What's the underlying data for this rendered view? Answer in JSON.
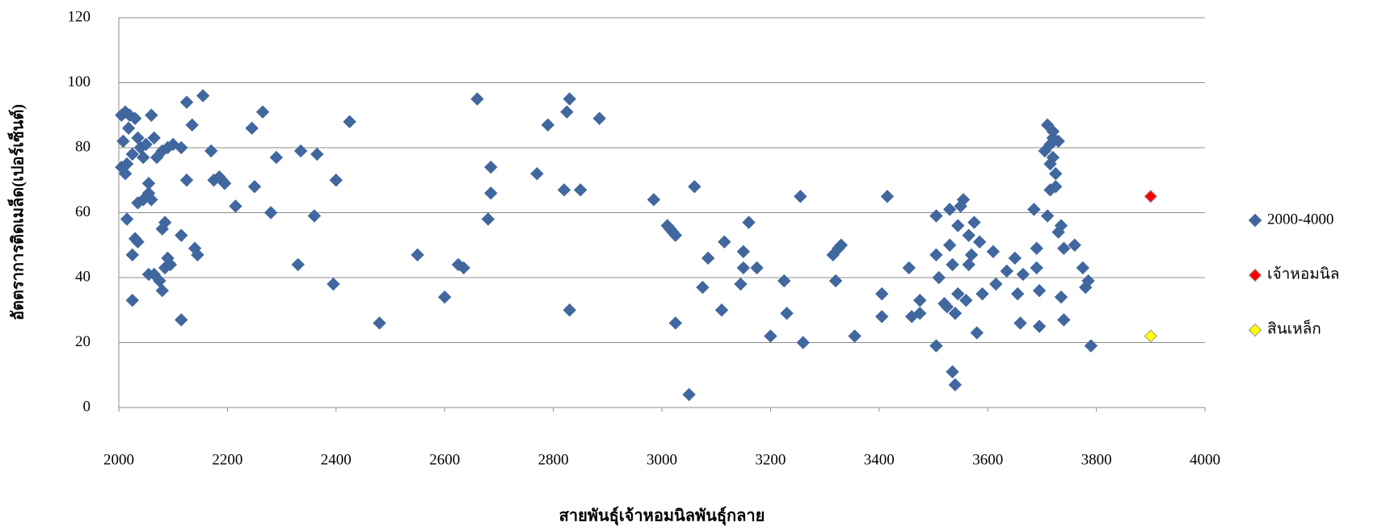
{
  "chart_data": {
    "type": "scatter",
    "x_label": "สายพันธุ์เจ้าหอมนิลพันธุ์กลาย",
    "y_label": "อัตตราการติดเมล็ด(เปอร์เซ็นต์)",
    "xlim": [
      2000,
      4000
    ],
    "xticks": [
      2000,
      2200,
      2400,
      2600,
      2800,
      3000,
      3200,
      3400,
      3600,
      3800,
      4000
    ],
    "ylim": [
      0,
      120
    ],
    "yticks": [
      0,
      20,
      40,
      60,
      80,
      100,
      120
    ],
    "grid": true,
    "legend": "right",
    "series": [
      {
        "name": "2000-4000",
        "color": "#41679f",
        "x": [
          2005,
          2012,
          2020,
          2030,
          2018,
          2008,
          2015,
          2005,
          2012,
          2025,
          2035,
          2040,
          2045,
          2050,
          2060,
          2065,
          2070,
          2080,
          2090,
          2100,
          2115,
          2015,
          2025,
          2030,
          2035,
          2035,
          2045,
          2055,
          2055,
          2060,
          2055,
          2065,
          2025,
          2080,
          2075,
          2085,
          2090,
          2095,
          2080,
          2085,
          2115,
          2115,
          2125,
          2125,
          2135,
          2140,
          2145,
          2155,
          2170,
          2175,
          2185,
          2190,
          2195,
          2215,
          2245,
          2250,
          2265,
          2280,
          2290,
          2330,
          2335,
          2360,
          2365,
          2395,
          2400,
          2425,
          2480,
          2550,
          2600,
          2625,
          2635,
          2660,
          2680,
          2685,
          2685,
          2770,
          2790,
          2820,
          2825,
          2830,
          2830,
          2850,
          2885,
          2985,
          3010,
          3015,
          3020,
          3025,
          3025,
          3050,
          3060,
          3075,
          3085,
          3110,
          3115,
          3145,
          3150,
          3150,
          3160,
          3175,
          3200,
          3225,
          3230,
          3255,
          3260,
          3315,
          3320,
          3325,
          3330,
          3355,
          3405,
          3405,
          3415,
          3455,
          3460,
          3475,
          3475,
          3505,
          3505,
          3505,
          3510,
          3520,
          3525,
          3530,
          3530,
          3535,
          3535,
          3540,
          3540,
          3545,
          3545,
          3550,
          3555,
          3560,
          3565,
          3565,
          3570,
          3575,
          3580,
          3585,
          3590,
          3610,
          3615,
          3635,
          3650,
          3655,
          3660,
          3665,
          3685,
          3690,
          3690,
          3695,
          3695,
          3705,
          3710,
          3710,
          3715,
          3715,
          3720,
          3720,
          3725,
          3725,
          3730,
          3730,
          3735,
          3735,
          3740,
          3740,
          3760,
          3775,
          3780,
          3785,
          3790,
          3720,
          3715
        ],
        "values": [
          90,
          91,
          90,
          89,
          86,
          82,
          75,
          74,
          72,
          78,
          83,
          80,
          77,
          81,
          90,
          83,
          77,
          79,
          80,
          81,
          80,
          58,
          47,
          52,
          51,
          63,
          64,
          69,
          66,
          64,
          41,
          41,
          33,
          36,
          39,
          43,
          46,
          44,
          55,
          57,
          53,
          27,
          70,
          94,
          87,
          49,
          47,
          96,
          79,
          70,
          71,
          70,
          69,
          62,
          86,
          68,
          91,
          60,
          77,
          44,
          79,
          59,
          78,
          38,
          70,
          88,
          26,
          47,
          34,
          44,
          43,
          95,
          58,
          66,
          74,
          72,
          87,
          67,
          91,
          95,
          30,
          67,
          89,
          64,
          56,
          55,
          54,
          53,
          26,
          4,
          68,
          37,
          46,
          30,
          51,
          38,
          43,
          48,
          57,
          43,
          22,
          39,
          29,
          65,
          20,
          47,
          39,
          49,
          50,
          22,
          35,
          28,
          65,
          43,
          28,
          33,
          29,
          19,
          59,
          47,
          40,
          32,
          31,
          61,
          50,
          44,
          11,
          7,
          29,
          56,
          35,
          62,
          64,
          33,
          53,
          44,
          47,
          57,
          23,
          51,
          35,
          48,
          38,
          42,
          46,
          35,
          26,
          41,
          61,
          49,
          43,
          36,
          25,
          79,
          87,
          59,
          81,
          67,
          85,
          77,
          72,
          68,
          82,
          54,
          56,
          34,
          49,
          27,
          50,
          43,
          37,
          39,
          19,
          83,
          75
        ]
      },
      {
        "name": "เจ้าหอมนิล",
        "color": "#ff0000",
        "x": [
          3900
        ],
        "values": [
          65
        ]
      },
      {
        "name": "สินเหล็ก",
        "color": "#ffff00",
        "x": [
          3900
        ],
        "values": [
          22
        ]
      }
    ]
  }
}
